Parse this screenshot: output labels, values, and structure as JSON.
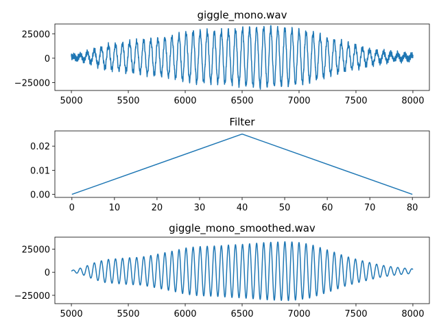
{
  "chart_data": [
    {
      "type": "line",
      "title": "giggle_mono.wav",
      "xlabel": "",
      "ylabel": "",
      "xlim": [
        4855,
        8145
      ],
      "ylim": [
        -33000,
        35000
      ],
      "x_ticks": [
        5000,
        5500,
        6000,
        6500,
        7000,
        7500,
        8000
      ],
      "y_ticks": [
        -25000,
        0,
        25000
      ],
      "color": "#1f77b4",
      "series": [
        {
          "x_start": 5000,
          "x_end": 8000,
          "period": 62,
          "envelope": [
            [
              5000,
              600
            ],
            [
              5100,
              3000
            ],
            [
              5200,
              7000
            ],
            [
              5300,
              11000
            ],
            [
              5400,
              13500
            ],
            [
              5500,
              15000
            ],
            [
              5600,
              16000
            ],
            [
              5700,
              17500
            ],
            [
              5800,
              19000
            ],
            [
              5900,
              21000
            ],
            [
              6000,
              24000
            ],
            [
              6100,
              25500
            ],
            [
              6200,
              26000
            ],
            [
              6300,
              26000
            ],
            [
              6400,
              27000
            ],
            [
              6500,
              28500
            ],
            [
              6600,
              30000
            ],
            [
              6700,
              30500
            ],
            [
              6800,
              29500
            ],
            [
              6900,
              29000
            ],
            [
              7000,
              26500
            ],
            [
              7100,
              25000
            ],
            [
              7200,
              21000
            ],
            [
              7300,
              17000
            ],
            [
              7400,
              14000
            ],
            [
              7500,
              11000
            ],
            [
              7600,
              8000
            ],
            [
              7700,
              5500
            ],
            [
              7800,
              4000
            ],
            [
              7900,
              3000
            ],
            [
              8000,
              2000
            ]
          ],
          "noise": 3500,
          "offset": 1200
        }
      ]
    },
    {
      "type": "line",
      "title": "Filter",
      "xlabel": "",
      "ylabel": "",
      "xlim": [
        -4,
        84
      ],
      "ylim": [
        -0.00125,
        0.0263
      ],
      "x_ticks": [
        0,
        10,
        20,
        30,
        40,
        50,
        60,
        70,
        80
      ],
      "y_ticks": [
        0.0,
        0.01,
        0.02
      ],
      "y_tick_labels": [
        "0.00",
        "0.01",
        "0.02"
      ],
      "color": "#1f77b4",
      "series": [
        {
          "x": [
            0,
            40,
            80
          ],
          "y": [
            0.0,
            0.025,
            0.0
          ]
        }
      ]
    },
    {
      "type": "line",
      "title": "giggle_mono_smoothed.wav",
      "xlabel": "",
      "ylabel": "",
      "xlim": [
        4855,
        8145
      ],
      "ylim": [
        -34000,
        38000
      ],
      "x_ticks": [
        5000,
        5500,
        6000,
        6500,
        7000,
        7500,
        8000
      ],
      "y_ticks": [
        -25000,
        0,
        25000
      ],
      "color": "#1f77b4",
      "series": [
        {
          "x_start": 5000,
          "x_end": 8000,
          "period": 62,
          "envelope": [
            [
              5000,
              600
            ],
            [
              5100,
              4000
            ],
            [
              5200,
              9000
            ],
            [
              5300,
              12500
            ],
            [
              5400,
              13500
            ],
            [
              5500,
              14500
            ],
            [
              5600,
              15000
            ],
            [
              5700,
              17000
            ],
            [
              5800,
              19500
            ],
            [
              5900,
              22000
            ],
            [
              6000,
              25000
            ],
            [
              6100,
              26500
            ],
            [
              6200,
              27000
            ],
            [
              6300,
              27500
            ],
            [
              6400,
              28500
            ],
            [
              6500,
              29000
            ],
            [
              6600,
              30000
            ],
            [
              6700,
              31000
            ],
            [
              6800,
              31500
            ],
            [
              6900,
              32000
            ],
            [
              7000,
              31000
            ],
            [
              7100,
              29000
            ],
            [
              7200,
              25000
            ],
            [
              7300,
              21000
            ],
            [
              7400,
              16500
            ],
            [
              7500,
              13000
            ],
            [
              7600,
              10000
            ],
            [
              7700,
              7000
            ],
            [
              7800,
              5000
            ],
            [
              7900,
              3500
            ],
            [
              8000,
              2500
            ]
          ],
          "noise": 0,
          "offset": 1200
        }
      ]
    }
  ]
}
